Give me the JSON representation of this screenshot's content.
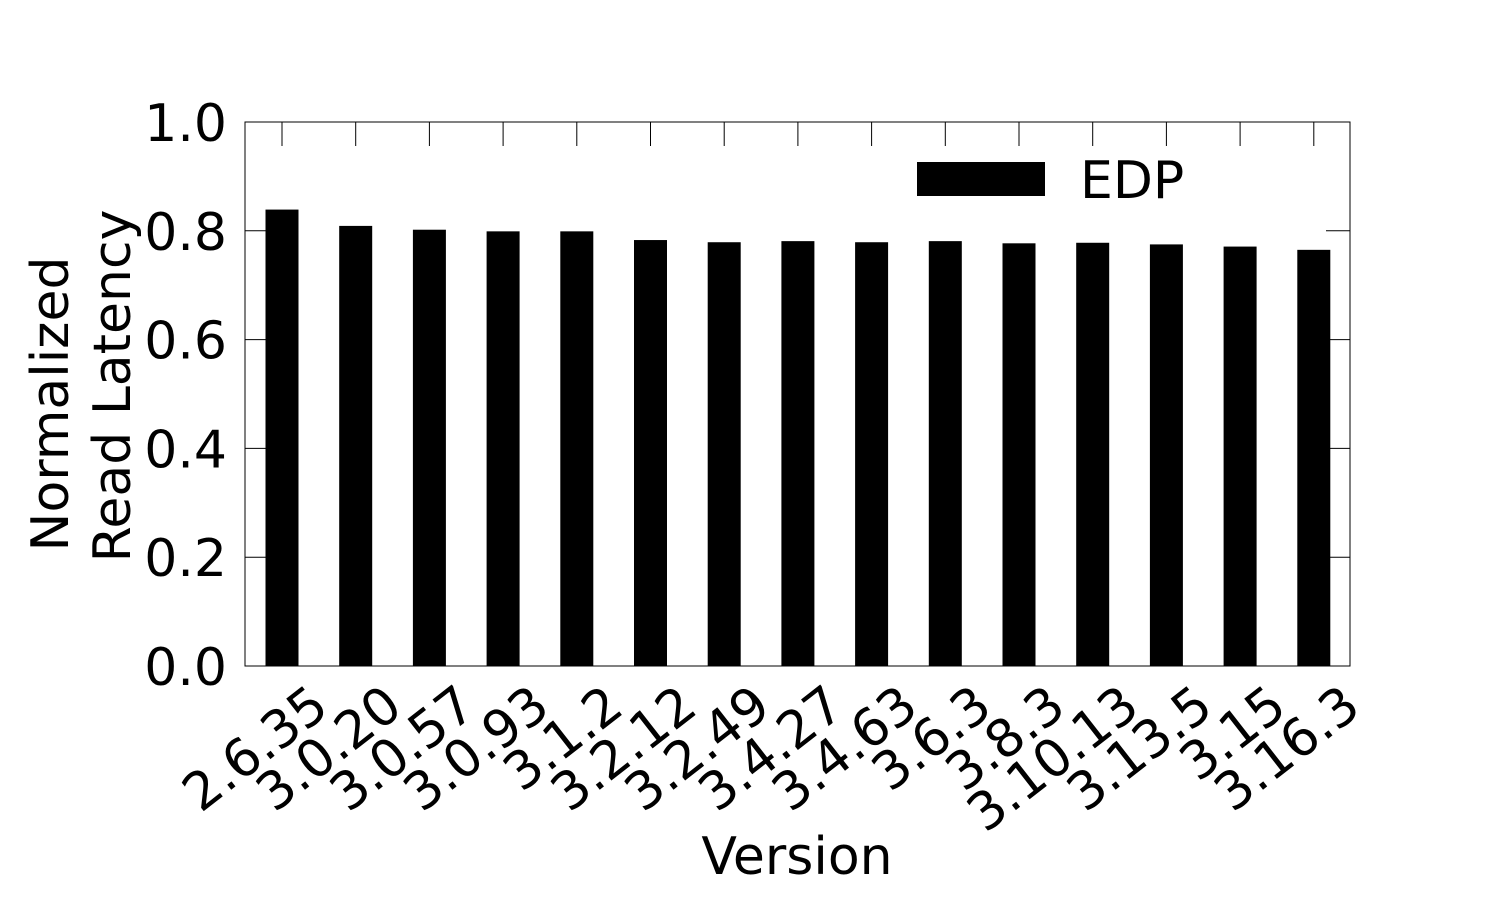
{
  "chart_data": {
    "type": "bar",
    "xlabel": "Version",
    "ylabel_lines": [
      "Normalized",
      "Read Latency"
    ],
    "ylim": [
      0,
      1.0
    ],
    "yticks": [
      0.0,
      0.2,
      0.4,
      0.6,
      0.8,
      1.0
    ],
    "ytick_labels": [
      "0.0",
      "0.2",
      "0.4",
      "0.6",
      "0.8",
      "1.0"
    ],
    "categories": [
      "2.6.35",
      "3.0.20",
      "3.0.57",
      "3.0.93",
      "3.1.2",
      "3.2.12",
      "3.2.49",
      "3.4.27",
      "3.4.63",
      "3.6.3",
      "3.8.3",
      "3.10.13",
      "3.13.5",
      "3.15",
      "3.16.3"
    ],
    "series": [
      {
        "name": "EDP",
        "color": "#000000",
        "values": [
          0.839,
          0.809,
          0.802,
          0.799,
          0.799,
          0.783,
          0.779,
          0.781,
          0.779,
          0.781,
          0.777,
          0.778,
          0.775,
          0.771,
          0.765
        ]
      }
    ],
    "grid": false,
    "legend_position": "top-right"
  }
}
